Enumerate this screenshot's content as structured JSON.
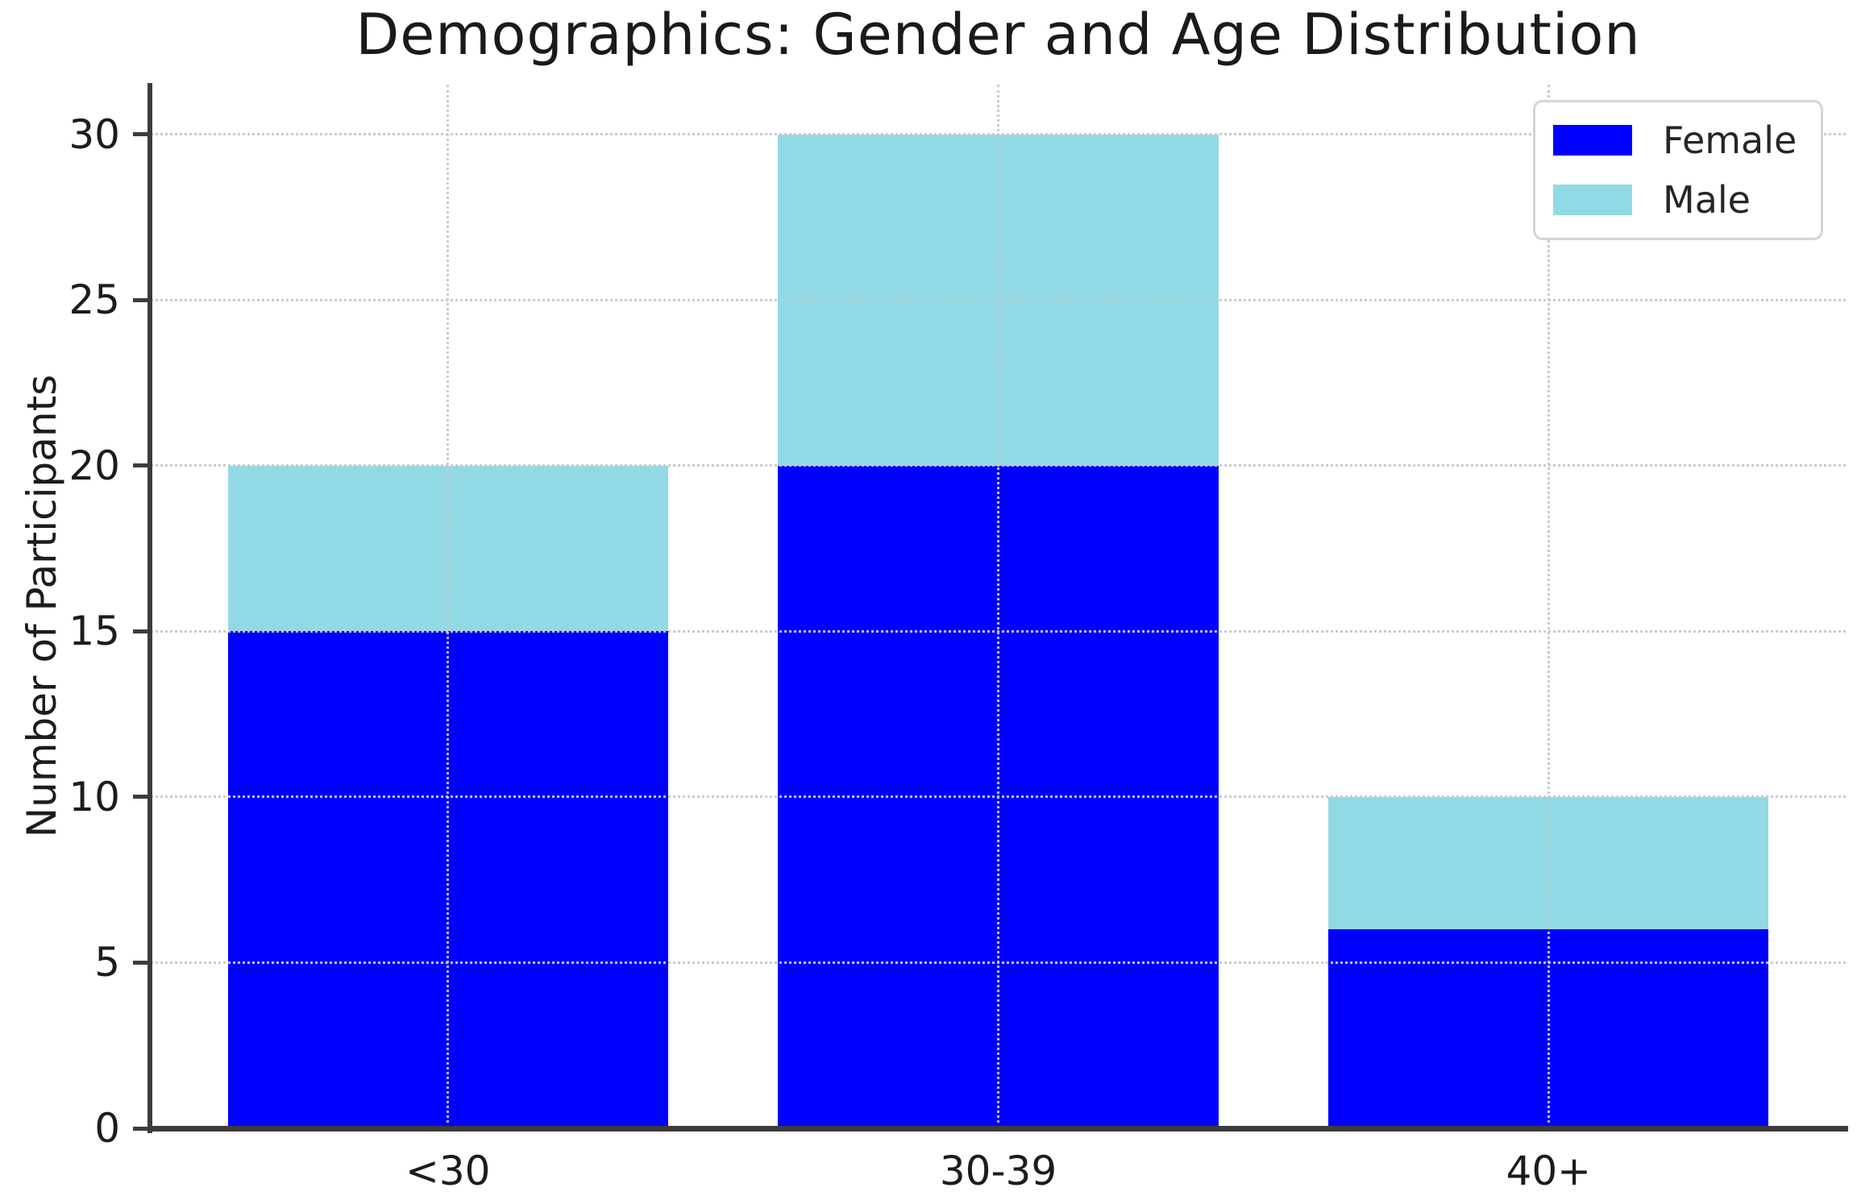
{
  "chart_data": {
    "type": "bar",
    "stacked": true,
    "title": "Demographics: Gender and Age Distribution",
    "xlabel": "",
    "ylabel": "Number of Participants",
    "categories": [
      "<30",
      "30-39",
      "40+"
    ],
    "series": [
      {
        "name": "Female",
        "color": "#0000FF",
        "values": [
          15,
          20,
          6
        ]
      },
      {
        "name": "Male",
        "color": "#92D9E6",
        "values": [
          5,
          10,
          4
        ]
      }
    ],
    "totals": [
      20,
      30,
      10
    ],
    "yticks": [
      0,
      5,
      10,
      15,
      20,
      25,
      30
    ],
    "ylim": [
      0,
      31.5
    ],
    "xlim": [
      -0.54,
      2.54
    ],
    "bar_width_units": 0.8,
    "grid": true,
    "grid_style": "dotted",
    "grid_color": "#c8c8c8",
    "legend_position": "upper right",
    "legend_entries": [
      "Female",
      "Male"
    ]
  },
  "colors": {
    "female": "#0000FF",
    "male": "#92D9E6",
    "axis": "#3c3c3c",
    "text": "#1c1c1c",
    "grid": "#c8c8c8",
    "legend_border": "#d4d4d4",
    "background": "#ffffff"
  }
}
